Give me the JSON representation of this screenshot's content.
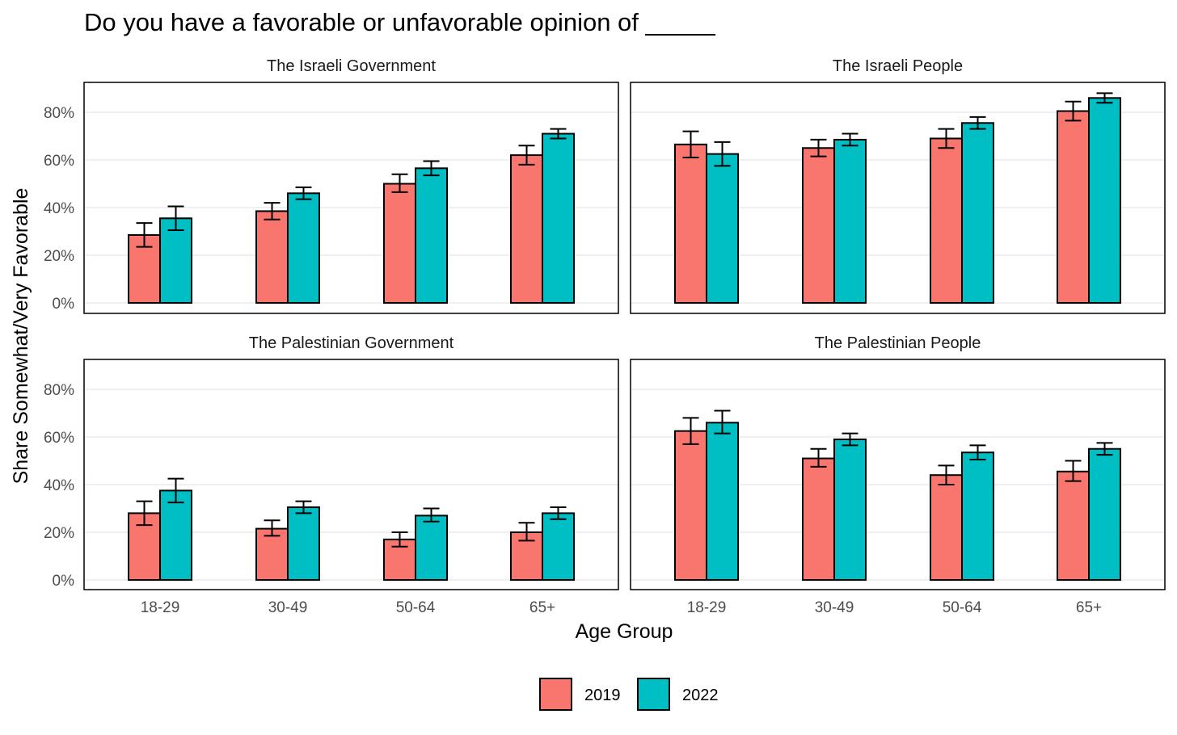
{
  "chart_data": {
    "type": "bar",
    "title": "Do you have a favorable or unfavorable opinion of _____",
    "xlabel": "Age Group",
    "ylabel": "Share Somewhat/Very Favorable",
    "ylim": [
      0,
      90
    ],
    "yticks": [
      "0%",
      "20%",
      "40%",
      "60%",
      "80%"
    ],
    "categories": [
      "18-29",
      "30-49",
      "50-64",
      "65+"
    ],
    "legend": [
      {
        "name": "2019",
        "color": "#F8766D"
      },
      {
        "name": "2022",
        "color": "#00BFC4"
      }
    ],
    "grid": true,
    "legend_position": "bottom",
    "facets": [
      {
        "title": "The Israeli Government",
        "series": [
          {
            "name": "2019",
            "values": [
              28.5,
              38.5,
              50,
              62
            ],
            "err_low": [
              23.5,
              35,
              46.5,
              58
            ],
            "err_high": [
              33.5,
              42,
              54,
              66
            ]
          },
          {
            "name": "2022",
            "values": [
              35.5,
              46,
              56.5,
              71
            ],
            "err_low": [
              30.5,
              43.5,
              53.5,
              69
            ],
            "err_high": [
              40.5,
              48.5,
              59.5,
              73
            ]
          }
        ]
      },
      {
        "title": "The Israeli People",
        "series": [
          {
            "name": "2019",
            "values": [
              66.5,
              65,
              69,
              80.5
            ],
            "err_low": [
              61,
              61.5,
              65,
              76.5
            ],
            "err_high": [
              72,
              68.5,
              73,
              84.5
            ]
          },
          {
            "name": "2022",
            "values": [
              62.5,
              68.5,
              75.5,
              86
            ],
            "err_low": [
              57.5,
              66,
              73,
              84
            ],
            "err_high": [
              67.5,
              71,
              78,
              88
            ]
          }
        ]
      },
      {
        "title": "The Palestinian Government",
        "series": [
          {
            "name": "2019",
            "values": [
              28,
              21.5,
              17,
              20
            ],
            "err_low": [
              23,
              18.5,
              14,
              16.5
            ],
            "err_high": [
              33,
              25,
              20,
              24
            ]
          },
          {
            "name": "2022",
            "values": [
              37.5,
              30.5,
              27,
              28
            ],
            "err_low": [
              32.5,
              28,
              24.5,
              25.5
            ],
            "err_high": [
              42.5,
              33,
              30,
              30.5
            ]
          }
        ]
      },
      {
        "title": "The Palestinian People",
        "series": [
          {
            "name": "2019",
            "values": [
              62.5,
              51,
              44,
              45.5
            ],
            "err_low": [
              57,
              47.5,
              40,
              41.5
            ],
            "err_high": [
              68,
              55,
              48,
              50
            ]
          },
          {
            "name": "2022",
            "values": [
              66,
              59,
              53.5,
              55
            ],
            "err_low": [
              61.5,
              56.5,
              50.5,
              52.5
            ],
            "err_high": [
              71,
              61.5,
              56.5,
              57.5
            ]
          }
        ]
      }
    ]
  }
}
